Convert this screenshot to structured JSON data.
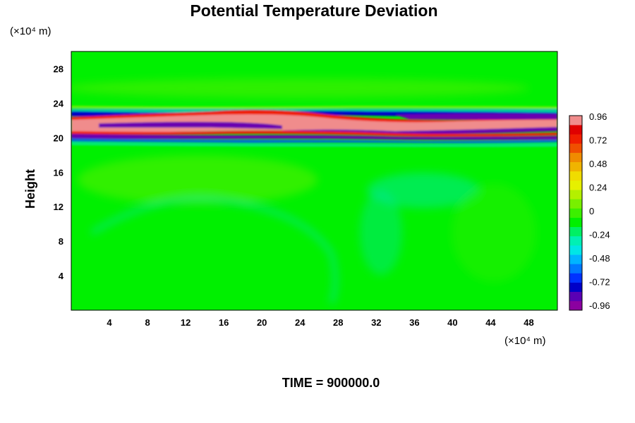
{
  "chart_data": {
    "type": "heatmap",
    "title": "Potential Temperature Deviation",
    "ylabel": "Height",
    "xunit": "(×10⁴ m)",
    "yunit": "(×10⁴ m)",
    "xlim": [
      0,
      51
    ],
    "ylim": [
      0,
      30
    ],
    "xticks": [
      "4",
      "8",
      "12",
      "16",
      "20",
      "24",
      "28",
      "32",
      "36",
      "40",
      "44",
      "48"
    ],
    "yticks": [
      "4",
      "8",
      "12",
      "16",
      "20",
      "24",
      "28"
    ],
    "colorbar": {
      "min": -0.96,
      "max": 0.96,
      "tick_labels": [
        "0.96",
        "0.72",
        "0.48",
        "0.24",
        "0",
        "-0.24",
        "-0.48",
        "-0.72",
        "-0.96"
      ],
      "colors": [
        "#8b00a0",
        "#5a00b4",
        "#0000c8",
        "#0032ff",
        "#0078ff",
        "#00b4ff",
        "#00e6e6",
        "#00f0b4",
        "#00f064",
        "#00f000",
        "#3cf000",
        "#78f000",
        "#b4f000",
        "#e6f000",
        "#f0dc00",
        "#f0b400",
        "#f08c00",
        "#f05000",
        "#f01e00",
        "#e00000",
        "#f08c8c"
      ]
    },
    "footer": "TIME = 900000.0"
  }
}
